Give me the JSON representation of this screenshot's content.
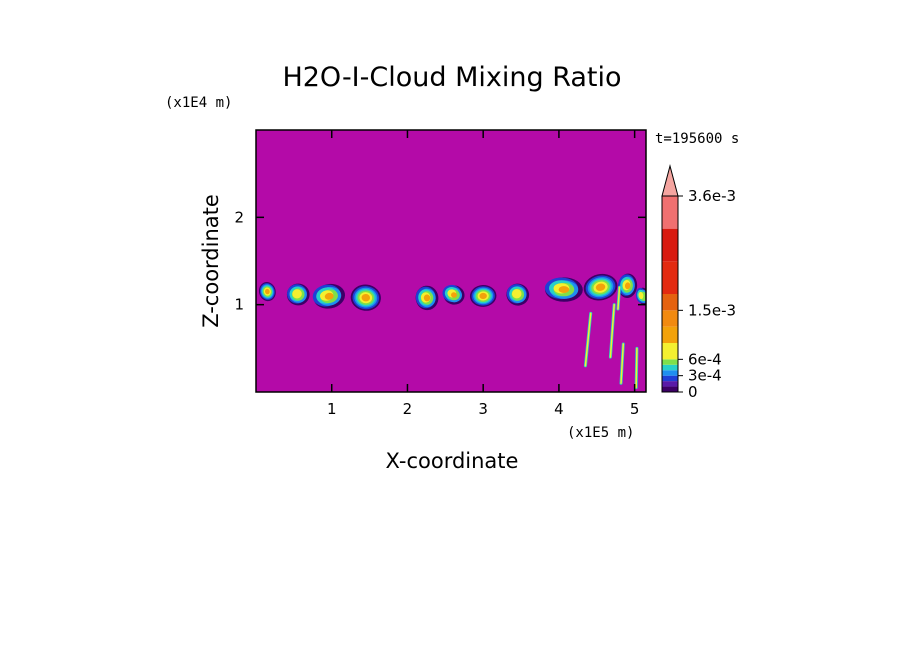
{
  "chart_data": {
    "type": "heatmap",
    "title": "H2O-I-Cloud Mixing Ratio",
    "xlabel": "X-coordinate",
    "ylabel": "Z-coordinate",
    "x_unit": "(x1E5 m)",
    "y_unit": "(x1E4 m)",
    "time_label": "t=195600 s",
    "xlim": [
      0,
      5.15
    ],
    "ylim": [
      0,
      3.0
    ],
    "x_ticks": [
      "1",
      "2",
      "3",
      "4",
      "5"
    ],
    "x_tick_values": [
      1,
      2,
      3,
      4,
      5
    ],
    "y_ticks": [
      "1",
      "2"
    ],
    "y_tick_values": [
      1,
      2
    ],
    "colorbar": {
      "min": 0,
      "max": 0.0036,
      "extend": "max",
      "labels": [
        "3.6e-3",
        "1.5e-3",
        "6e-4",
        "3e-4",
        "0"
      ],
      "label_values": [
        0.0036,
        0.0015,
        0.0006,
        0.0003,
        0
      ],
      "colors": [
        "#3d0066",
        "#5a1aa8",
        "#1f3fd6",
        "#1f8ff0",
        "#27d0c8",
        "#7ee04a",
        "#f4f030",
        "#f3a20a",
        "#f28a10",
        "#e5620f",
        "#e32a10",
        "#d81b10",
        "#f07070",
        "#f5a5a0"
      ],
      "background": "#b40aa8"
    },
    "cloud_blobs": [
      {
        "x": 0.15,
        "z": 1.15,
        "w": 0.22,
        "h": 0.22,
        "peak": 0.75
      },
      {
        "x": 0.55,
        "z": 1.12,
        "w": 0.3,
        "h": 0.25,
        "peak": 0.7
      },
      {
        "x": 0.95,
        "z": 1.1,
        "w": 0.42,
        "h": 0.28,
        "peak": 0.9
      },
      {
        "x": 1.45,
        "z": 1.08,
        "w": 0.4,
        "h": 0.3,
        "peak": 0.9
      },
      {
        "x": 2.25,
        "z": 1.08,
        "w": 0.3,
        "h": 0.28,
        "peak": 0.85
      },
      {
        "x": 2.6,
        "z": 1.12,
        "w": 0.28,
        "h": 0.22,
        "peak": 0.8
      },
      {
        "x": 3.0,
        "z": 1.1,
        "w": 0.35,
        "h": 0.25,
        "peak": 0.85
      },
      {
        "x": 3.45,
        "z": 1.12,
        "w": 0.3,
        "h": 0.25,
        "peak": 0.6
      },
      {
        "x": 4.05,
        "z": 1.18,
        "w": 0.5,
        "h": 0.28,
        "peak": 0.95
      },
      {
        "x": 4.55,
        "z": 1.2,
        "w": 0.45,
        "h": 0.3,
        "peak": 0.9
      },
      {
        "x": 4.9,
        "z": 1.22,
        "w": 0.25,
        "h": 0.28,
        "peak": 0.8
      },
      {
        "x": 5.1,
        "z": 1.1,
        "w": 0.15,
        "h": 0.2,
        "peak": 0.6
      }
    ],
    "streaks": [
      {
        "x0": 4.42,
        "z0": 0.9,
        "x1": 4.35,
        "z1": 0.3
      },
      {
        "x0": 4.73,
        "z0": 1.0,
        "x1": 4.68,
        "z1": 0.4
      },
      {
        "x0": 4.85,
        "z0": 0.55,
        "x1": 4.82,
        "z1": 0.1
      },
      {
        "x0": 5.03,
        "z0": 0.5,
        "x1": 5.02,
        "z1": 0.05
      },
      {
        "x0": 4.8,
        "z0": 1.2,
        "x1": 4.78,
        "z1": 0.95
      }
    ]
  }
}
